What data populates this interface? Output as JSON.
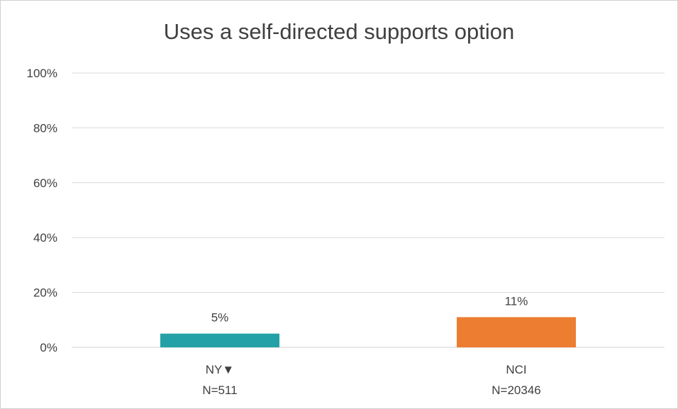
{
  "chart_data": {
    "type": "bar",
    "title": "Uses a self-directed supports option",
    "categories": [
      {
        "line1": "NY▼",
        "line2": "N=511"
      },
      {
        "line1": "NCI",
        "line2": "N=20346"
      }
    ],
    "values": [
      5,
      11
    ],
    "value_labels": [
      "5%",
      "11%"
    ],
    "colors": [
      "#24a1a6",
      "#ed7d31"
    ],
    "ylim": [
      0,
      100
    ],
    "yticks": [
      0,
      20,
      40,
      60,
      80,
      100
    ],
    "ytick_labels": [
      "0%",
      "20%",
      "40%",
      "60%",
      "80%",
      "100%"
    ],
    "grid": true,
    "legend": "none",
    "xlabel": "",
    "ylabel": ""
  }
}
